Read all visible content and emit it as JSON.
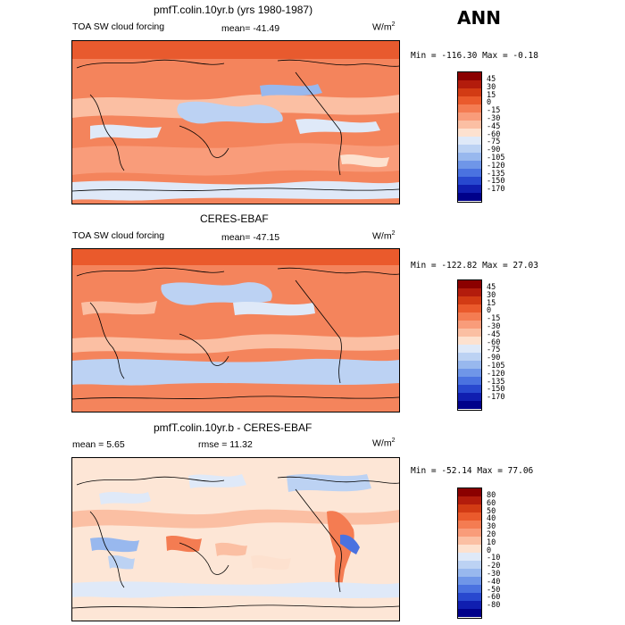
{
  "season": "ANN",
  "units_base": "W/m",
  "units_exp": "2",
  "panels": [
    {
      "title": "pmfT.colin.10yr.b (yrs 1980-1987)",
      "left_label": "TOA SW cloud forcing",
      "stat1": "mean=  -41.49",
      "stat2": "",
      "minmax": "Min = -116.30  Max =   -0.18",
      "legend_levels": [
        "45",
        "30",
        "15",
        "0",
        "-15",
        "-30",
        "-45",
        "-60",
        "-75",
        "-90",
        "-105",
        "-120",
        "-135",
        "-150",
        "-170"
      ]
    },
    {
      "title": "CERES-EBAF",
      "left_label": "TOA SW cloud forcing",
      "stat1": "mean=  -47.15",
      "stat2": "",
      "minmax": "Min = -122.82  Max =  27.03",
      "legend_levels": [
        "45",
        "30",
        "15",
        "0",
        "-15",
        "-30",
        "-45",
        "-60",
        "-75",
        "-90",
        "-105",
        "-120",
        "-135",
        "-150",
        "-170"
      ]
    },
    {
      "title": "pmfT.colin.10yr.b - CERES-EBAF",
      "left_label": "mean =    5.65",
      "stat1": "rmse =   11.32",
      "stat2": "",
      "minmax": "Min = -52.14  Max =  77.06",
      "legend_levels": [
        "80",
        "60",
        "50",
        "40",
        "30",
        "20",
        "10",
        "0",
        "-10",
        "-20",
        "-30",
        "-40",
        "-50",
        "-60",
        "-80"
      ]
    }
  ],
  "colors": {
    "scale": [
      "#8b0000",
      "#b31c0c",
      "#d23b14",
      "#ea5a2c",
      "#f47c52",
      "#f99c7a",
      "#fbbfa3",
      "#fde1cf",
      "#dfe9f8",
      "#bcd2f3",
      "#98b8ee",
      "#6f96e8",
      "#4a72e0",
      "#2848cf",
      "#101eb0",
      "#00008a"
    ],
    "background_warm": "#f58a64",
    "background_diff": "#fde6d6"
  },
  "chart_data": [
    {
      "type": "heatmap",
      "title": "pmfT.colin.10yr.b (yrs 1980-1987)",
      "variable": "TOA SW cloud forcing",
      "units": "W/m2",
      "mean": -41.49,
      "min": -116.3,
      "max": -0.18,
      "contour_levels": [
        45,
        30,
        15,
        0,
        -15,
        -30,
        -45,
        -60,
        -75,
        -90,
        -105,
        -120,
        -135,
        -150,
        -170
      ]
    },
    {
      "type": "heatmap",
      "title": "CERES-EBAF",
      "variable": "TOA SW cloud forcing",
      "units": "W/m2",
      "mean": -47.15,
      "min": -122.82,
      "max": 27.03,
      "contour_levels": [
        45,
        30,
        15,
        0,
        -15,
        -30,
        -45,
        -60,
        -75,
        -90,
        -105,
        -120,
        -135,
        -150,
        -170
      ]
    },
    {
      "type": "heatmap",
      "title": "pmfT.colin.10yr.b - CERES-EBAF",
      "units": "W/m2",
      "mean": 5.65,
      "rmse": 11.32,
      "min": -52.14,
      "max": 77.06,
      "contour_levels": [
        80,
        60,
        50,
        40,
        30,
        20,
        10,
        0,
        -10,
        -20,
        -30,
        -40,
        -50,
        -60,
        -80
      ]
    }
  ]
}
